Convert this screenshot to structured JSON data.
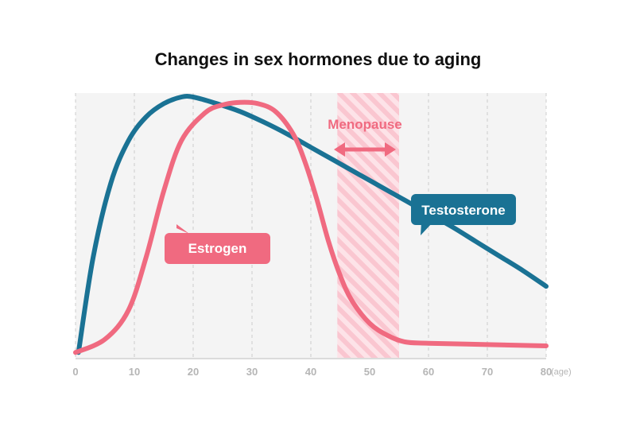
{
  "chart_data": {
    "type": "line",
    "title": "Changes in sex hormones due to aging",
    "xlabel": "",
    "ylabel": "",
    "x_unit": "(age)",
    "xlim": [
      0,
      80
    ],
    "x_ticks": [
      0,
      10,
      20,
      30,
      40,
      50,
      60,
      70,
      80
    ],
    "ylim": [
      0,
      100
    ],
    "grid": "vertical dashed",
    "band": {
      "label": "Menopause",
      "from": 44.5,
      "to": 55,
      "color": "#f06a80"
    },
    "series": [
      {
        "name": "Testosterone",
        "color": "#1a7294",
        "x": [
          0.5,
          3,
          6,
          9,
          12,
          15,
          18,
          20,
          24,
          28,
          32,
          36,
          40,
          44,
          48,
          52,
          56,
          60,
          64,
          68,
          72,
          76,
          80
        ],
        "y": [
          2,
          38,
          66,
          82,
          91,
          96,
          98.5,
          98.5,
          96,
          93,
          89,
          84.5,
          79.5,
          74.5,
          69.5,
          64.5,
          59.5,
          54.5,
          49.5,
          44,
          38.5,
          33,
          27
        ]
      },
      {
        "name": "Estrogen",
        "color": "#f06a80",
        "x": [
          0,
          5,
          9,
          12,
          15,
          18,
          22,
          25,
          28,
          31,
          34,
          37,
          39,
          41,
          43,
          45,
          47,
          50,
          53,
          56,
          60,
          70,
          80
        ],
        "y": [
          2,
          7,
          18,
          38,
          63,
          82,
          92.5,
          95.5,
          96.5,
          96,
          93,
          84.5,
          74,
          60,
          44,
          31,
          21.5,
          13,
          8.5,
          6,
          5.5,
          5,
          4.5
        ]
      }
    ]
  }
}
